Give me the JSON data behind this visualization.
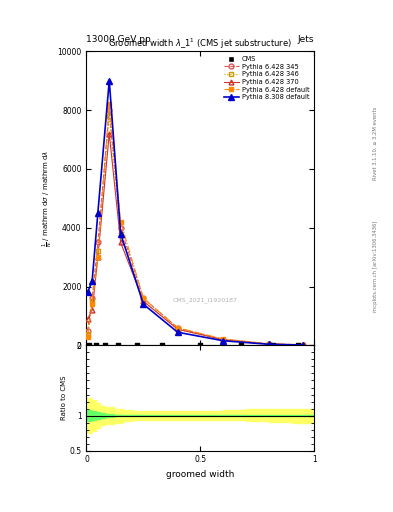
{
  "title": "Groomed width $\\lambda\\_1^1$ (CMS jet substructure)",
  "header_left": "13000 GeV pp",
  "header_right": "Jets",
  "watermark": "CMS_2021_I1920187",
  "xlabel": "groomed width",
  "ylabel_ratio": "Ratio to CMS",
  "right_label1": "Rivet 3.1.10, ≥ 3.2M events",
  "right_label2": "mcplots.cern.ch [arXiv:1306.3436]",
  "p6_345_x": [
    0.005,
    0.025,
    0.05,
    0.1,
    0.15,
    0.25,
    0.4,
    0.6,
    0.8,
    0.95
  ],
  "p6_345_y": [
    500,
    1600,
    3500,
    8000,
    4000,
    1600,
    600,
    200,
    50,
    20
  ],
  "p6_346_x": [
    0.005,
    0.025,
    0.05,
    0.1,
    0.15,
    0.25,
    0.4,
    0.6,
    0.8,
    0.95
  ],
  "p6_346_y": [
    400,
    1500,
    3200,
    7800,
    3800,
    1500,
    550,
    190,
    45,
    18
  ],
  "p6_370_x": [
    0.005,
    0.025,
    0.05,
    0.1,
    0.15,
    0.25,
    0.4,
    0.6,
    0.8,
    0.95
  ],
  "p6_370_y": [
    900,
    1200,
    3000,
    7200,
    3500,
    1500,
    550,
    200,
    50,
    20
  ],
  "p6_def_x": [
    0.005,
    0.025,
    0.05,
    0.1,
    0.15,
    0.25,
    0.4,
    0.6,
    0.8,
    0.95
  ],
  "p6_def_y": [
    300,
    1400,
    3000,
    8200,
    4200,
    1600,
    600,
    220,
    60,
    25
  ],
  "p8_def_x": [
    0.005,
    0.025,
    0.05,
    0.1,
    0.15,
    0.25,
    0.4,
    0.6,
    0.8,
    0.95
  ],
  "p8_def_y": [
    1800,
    2200,
    4500,
    9000,
    3800,
    1400,
    450,
    160,
    40,
    15
  ],
  "cms_ticks_x": [
    0.01,
    0.04,
    0.08,
    0.14,
    0.22,
    0.33,
    0.5,
    0.68,
    0.82,
    0.93
  ],
  "ratio_x": [
    0.0,
    0.02,
    0.04,
    0.06,
    0.08,
    0.12,
    0.16,
    0.2,
    0.25,
    0.3,
    0.4,
    0.5,
    0.6,
    0.7,
    0.8,
    0.9,
    1.0
  ],
  "ratio_green_lo": [
    0.92,
    0.93,
    0.95,
    0.97,
    0.98,
    0.99,
    0.99,
    0.99,
    0.99,
    0.99,
    0.995,
    0.995,
    0.995,
    0.998,
    0.998,
    0.998,
    1.0
  ],
  "ratio_green_hi": [
    1.08,
    1.07,
    1.05,
    1.03,
    1.02,
    1.01,
    1.01,
    1.01,
    1.01,
    1.01,
    1.005,
    1.005,
    1.005,
    1.002,
    1.002,
    1.005,
    1.02
  ],
  "ratio_yellow_lo": [
    0.75,
    0.78,
    0.82,
    0.86,
    0.88,
    0.9,
    0.92,
    0.93,
    0.93,
    0.94,
    0.94,
    0.94,
    0.93,
    0.92,
    0.91,
    0.9,
    0.9
  ],
  "ratio_yellow_hi": [
    1.25,
    1.22,
    1.18,
    1.14,
    1.12,
    1.1,
    1.08,
    1.07,
    1.07,
    1.06,
    1.06,
    1.07,
    1.08,
    1.09,
    1.1,
    1.1,
    1.1
  ],
  "color_cms": "#000000",
  "color_p6_345": "#e05555",
  "color_p6_346": "#cc9900",
  "color_p6_370": "#cc3333",
  "color_p6_def": "#ff8800",
  "color_p8_def": "#0000cc",
  "ylim_main": [
    0,
    10000
  ],
  "ylim_ratio": [
    0.5,
    2.0
  ],
  "xlim": [
    0.0,
    1.0
  ],
  "yticks_main": [
    0,
    2000,
    4000,
    6000,
    8000,
    10000
  ],
  "ytick_labels_main": [
    "0",
    "2000",
    "4000",
    "6000",
    "8000",
    "10000"
  ],
  "xticks": [
    0.0,
    0.5,
    1.0
  ],
  "xtick_labels": [
    "0",
    "0.5",
    "1"
  ]
}
